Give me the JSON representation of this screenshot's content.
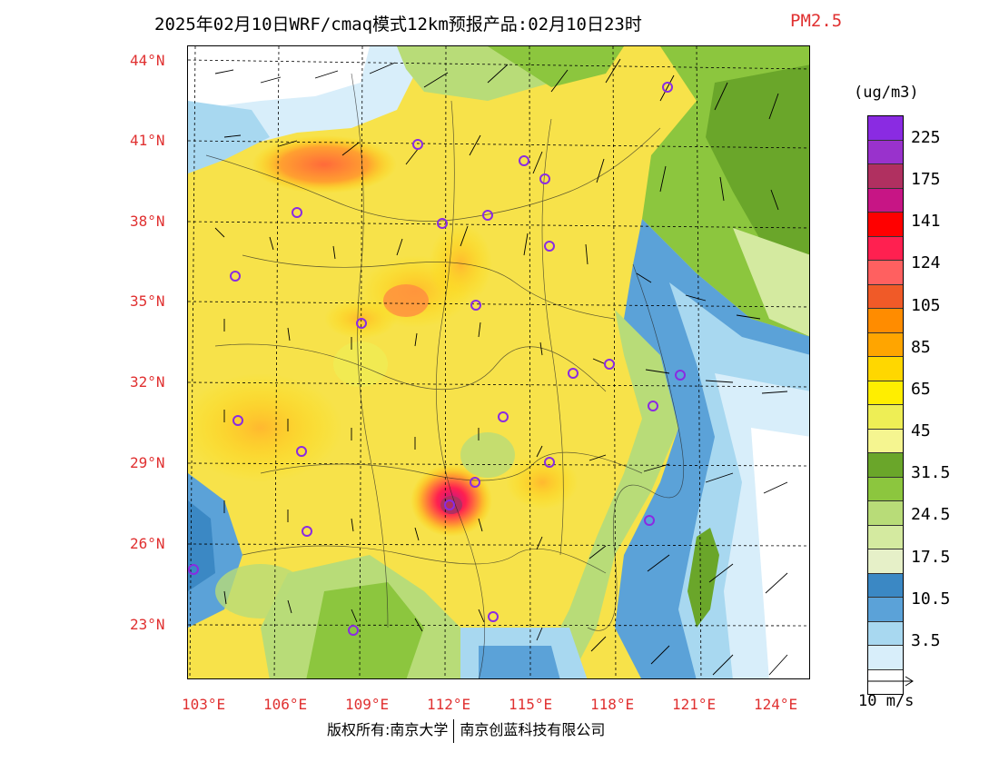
{
  "title": "2025年02月10日WRF/cmaq模式12km预报产品:02月10日23时",
  "variable": "PM2.5",
  "unit": "(ug/m3)",
  "lat_labels": [
    "44°N",
    "41°N",
    "38°N",
    "35°N",
    "32°N",
    "29°N",
    "26°N",
    "23°N"
  ],
  "lon_labels": [
    "103°E",
    "106°E",
    "109°E",
    "112°E",
    "115°E",
    "118°E",
    "121°E",
    "124°E"
  ],
  "colorbar": {
    "colors": [
      "#8a2be2",
      "#9932cc",
      "#b03060",
      "#c71585",
      "#ff0000",
      "#ff2050",
      "#ff6060",
      "#f05a28",
      "#ff8c00",
      "#ffa500",
      "#ffd700",
      "#ffee00",
      "#eeee55",
      "#f5f590",
      "#6aa62a",
      "#8cc63e",
      "#b8dc78",
      "#d4eaa0",
      "#e6f0c8",
      "#3b88c4",
      "#5ba2d8",
      "#a8d8f0",
      "#d8eefa",
      "#ffffff"
    ],
    "labels": [
      "225",
      "175",
      "141",
      "124",
      "105",
      "85",
      "65",
      "45",
      "31.5",
      "24.5",
      "17.5",
      "10.5",
      "3.5"
    ]
  },
  "wind_ref": "10 m/s",
  "footer": {
    "left": "版权所有:南京大学",
    "right": "南京创蓝科技有限公司"
  },
  "colors": {
    "accent_red": "#e03030",
    "station_marker": "#8a2be2"
  }
}
